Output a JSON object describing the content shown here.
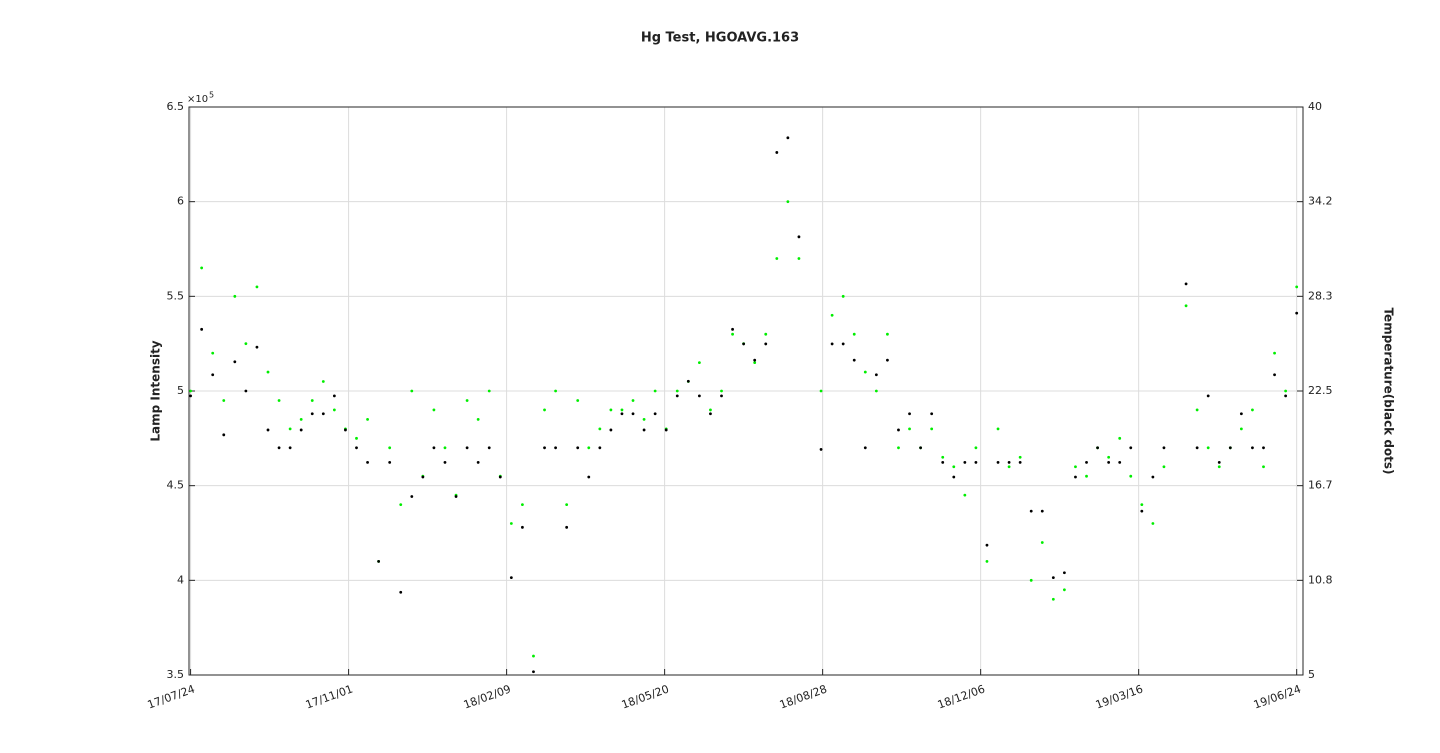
{
  "chart_data": {
    "type": "scatter",
    "title": "Hg Test, HGOAVG.163",
    "y_label": "Lamp Intensity",
    "y2_label": "Temperature(black dots)",
    "y_exponent_base": "×10",
    "y_exponent_power": "5",
    "grid": true,
    "x": [
      "17/07/24",
      "17/07/31",
      "17/08/07",
      "17/08/14",
      "17/08/21",
      "17/08/28",
      "17/09/04",
      "17/09/11",
      "17/09/18",
      "17/09/25",
      "17/10/02",
      "17/10/09",
      "17/10/16",
      "17/10/23",
      "17/10/30",
      "17/11/06",
      "17/11/13",
      "17/11/20",
      "17/11/27",
      "17/12/04",
      "17/12/11",
      "17/12/18",
      "17/12/25",
      "18/01/01",
      "18/01/08",
      "18/01/15",
      "18/01/22",
      "18/01/29",
      "18/02/05",
      "18/02/12",
      "18/02/19",
      "18/02/26",
      "18/03/05",
      "18/03/12",
      "18/03/19",
      "18/03/26",
      "18/04/02",
      "18/04/09",
      "18/04/16",
      "18/04/23",
      "18/04/30",
      "18/05/07",
      "18/05/14",
      "18/05/21",
      "18/05/28",
      "18/06/04",
      "18/06/11",
      "18/06/18",
      "18/06/25",
      "18/07/02",
      "18/07/09",
      "18/07/16",
      "18/07/23",
      "18/07/30",
      "18/08/06",
      "18/08/13",
      "18/08/20",
      "18/08/27",
      "18/09/03",
      "18/09/10",
      "18/09/17",
      "18/09/24",
      "18/10/01",
      "18/10/08",
      "18/10/15",
      "18/10/22",
      "18/10/29",
      "18/11/05",
      "18/11/12",
      "18/11/19",
      "18/11/26",
      "18/12/03",
      "18/12/10",
      "18/12/17",
      "18/12/24",
      "18/12/31",
      "19/01/07",
      "19/01/14",
      "19/01/21",
      "19/01/28",
      "19/02/04",
      "19/02/11",
      "19/02/18",
      "19/02/25",
      "19/03/04",
      "19/03/11",
      "19/03/18",
      "19/03/25",
      "19/04/01",
      "19/04/08",
      "19/04/15",
      "19/04/22",
      "19/04/29",
      "19/05/06",
      "19/05/13",
      "19/05/20",
      "19/05/27",
      "19/06/03",
      "19/06/10",
      "19/06/17",
      "19/06/24"
    ],
    "series": [
      {
        "color": "#00ee00",
        "values": [
          500000,
          565000,
          520000,
          495000,
          550000,
          525000,
          555000,
          510000,
          495000,
          480000,
          485000,
          495000,
          505000,
          490000,
          480000,
          475000,
          485000,
          410000,
          470000,
          440000,
          500000,
          455000,
          490000,
          470000,
          445000,
          495000,
          485000,
          500000,
          455000,
          430000,
          440000,
          360000,
          490000,
          500000,
          440000,
          495000,
          470000,
          480000,
          490000,
          490000,
          495000,
          485000,
          500000,
          480000,
          500000,
          505000,
          515000,
          490000,
          500000,
          530000,
          525000,
          515000,
          530000,
          570000,
          600000,
          570000,
          null,
          500000,
          540000,
          550000,
          530000,
          510000,
          500000,
          530000,
          470000,
          480000,
          470000,
          480000,
          465000,
          460000,
          445000,
          470000,
          410000,
          480000,
          460000,
          465000,
          400000,
          420000,
          390000,
          395000,
          460000,
          455000,
          470000,
          465000,
          475000,
          455000,
          440000,
          430000,
          460000,
          null,
          545000,
          490000,
          470000,
          460000,
          470000,
          480000,
          490000,
          460000,
          520000,
          500000,
          555000
        ]
      },
      {
        "color": "#000000",
        "axis": "y2",
        "values": [
          22.2,
          26.3,
          23.5,
          19.8,
          24.3,
          22.5,
          25.2,
          20.1,
          19.0,
          19.0,
          20.1,
          21.1,
          21.1,
          22.2,
          20.1,
          19.0,
          18.1,
          12.0,
          18.1,
          10.1,
          16.0,
          17.2,
          19.0,
          18.1,
          16.0,
          19.0,
          18.1,
          19.0,
          17.2,
          11.0,
          14.1,
          5.2,
          19.0,
          19.0,
          14.1,
          19.0,
          17.2,
          19.0,
          20.1,
          21.1,
          21.1,
          20.1,
          21.1,
          20.1,
          22.2,
          23.1,
          22.2,
          21.1,
          22.2,
          26.3,
          25.4,
          24.4,
          25.4,
          37.2,
          38.1,
          32.0,
          null,
          18.9,
          25.4,
          25.4,
          24.4,
          19.0,
          23.5,
          24.4,
          20.1,
          21.1,
          19.0,
          21.1,
          18.1,
          17.2,
          18.1,
          18.1,
          13.0,
          18.1,
          18.1,
          18.1,
          15.1,
          15.1,
          11.0,
          11.3,
          17.2,
          18.1,
          19.0,
          18.1,
          18.1,
          19.0,
          15.1,
          17.2,
          19.0,
          null,
          29.1,
          19.0,
          22.2,
          18.1,
          19.0,
          21.1,
          19.0,
          19.0,
          23.5,
          22.2,
          27.3
        ]
      }
    ],
    "xlim": [
      "17/07/23",
      "19/06/28"
    ],
    "xticks": [
      "17/07/24",
      "17/11/01",
      "18/02/09",
      "18/05/20",
      "18/08/28",
      "18/12/06",
      "19/03/16",
      "19/06/24"
    ],
    "ylim": [
      350000,
      650000
    ],
    "yticks": [
      {
        "value": 350000,
        "label": "3.5"
      },
      {
        "value": 400000,
        "label": "4"
      },
      {
        "value": 450000,
        "label": "4.5"
      },
      {
        "value": 500000,
        "label": "5"
      },
      {
        "value": 550000,
        "label": "5.5"
      },
      {
        "value": 600000,
        "label": "6"
      },
      {
        "value": 650000,
        "label": "6.5"
      }
    ],
    "y2lim": [
      5,
      40
    ],
    "y2ticks": [
      5,
      {
        "value": 10.8333,
        "label": "10.8"
      },
      {
        "value": 16.6667,
        "label": "16.7"
      },
      22.5,
      {
        "value": 28.3333,
        "label": "28.3"
      },
      {
        "value": 34.1667,
        "label": "34.2"
      },
      40
    ]
  }
}
